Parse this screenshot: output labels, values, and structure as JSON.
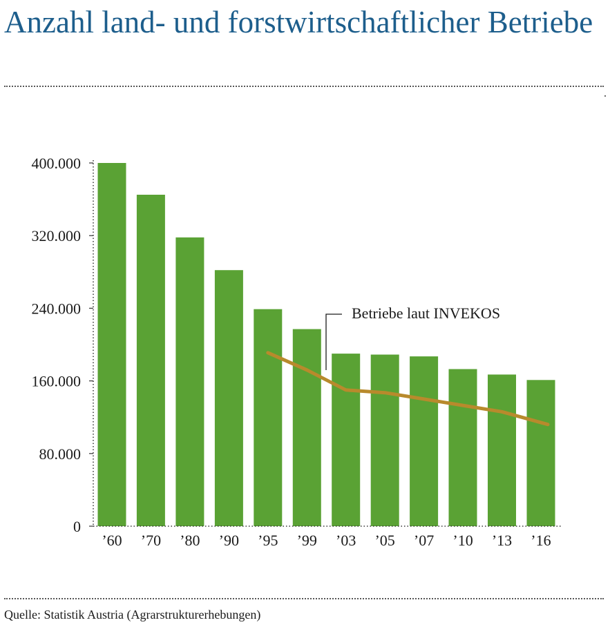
{
  "header": {
    "title": "Anzahl land- und forstwirtschaftlicher Betriebe"
  },
  "footer": {
    "source": "Quelle: Statistik Austria (Agrarstrukturerhebungen)"
  },
  "colors": {
    "title": "#1d5e8c",
    "bars": "#5aa234",
    "line": "#b88a2c",
    "text": "#1a1a1a"
  },
  "chart_data": {
    "type": "bar",
    "title": "Anzahl land- und forstwirtschaftlicher Betriebe",
    "xlabel": "",
    "ylabel": "",
    "categories": [
      "’60",
      "’70",
      "’80",
      "’90",
      "’95",
      "’99",
      "’03",
      "’05",
      "’07",
      "’10",
      "’13",
      "’16"
    ],
    "series": [
      {
        "type": "bar",
        "values": [
          400000,
          365000,
          318000,
          282000,
          239000,
          217000,
          190000,
          189000,
          187000,
          173000,
          167000,
          161000
        ]
      },
      {
        "name": "Betriebe laut INVEKOS",
        "type": "line",
        "x": [
          "’95",
          "’99",
          "’03",
          "’05",
          "’07",
          "’10",
          "’13",
          "’16"
        ],
        "values": [
          191000,
          172000,
          150000,
          147000,
          140000,
          133000,
          126000,
          112000
        ]
      }
    ],
    "yticks": [
      0,
      80000,
      160000,
      240000,
      320000,
      400000
    ],
    "ytick_labels": [
      "0",
      "80.000",
      "160.000",
      "240.000",
      "320.000",
      "400.000"
    ],
    "ylim": [
      0,
      400000
    ],
    "grid": false,
    "annotations": [
      {
        "text": "Betriebe laut INVEKOS",
        "target_series": "Betriebe laut INVEKOS"
      }
    ]
  }
}
